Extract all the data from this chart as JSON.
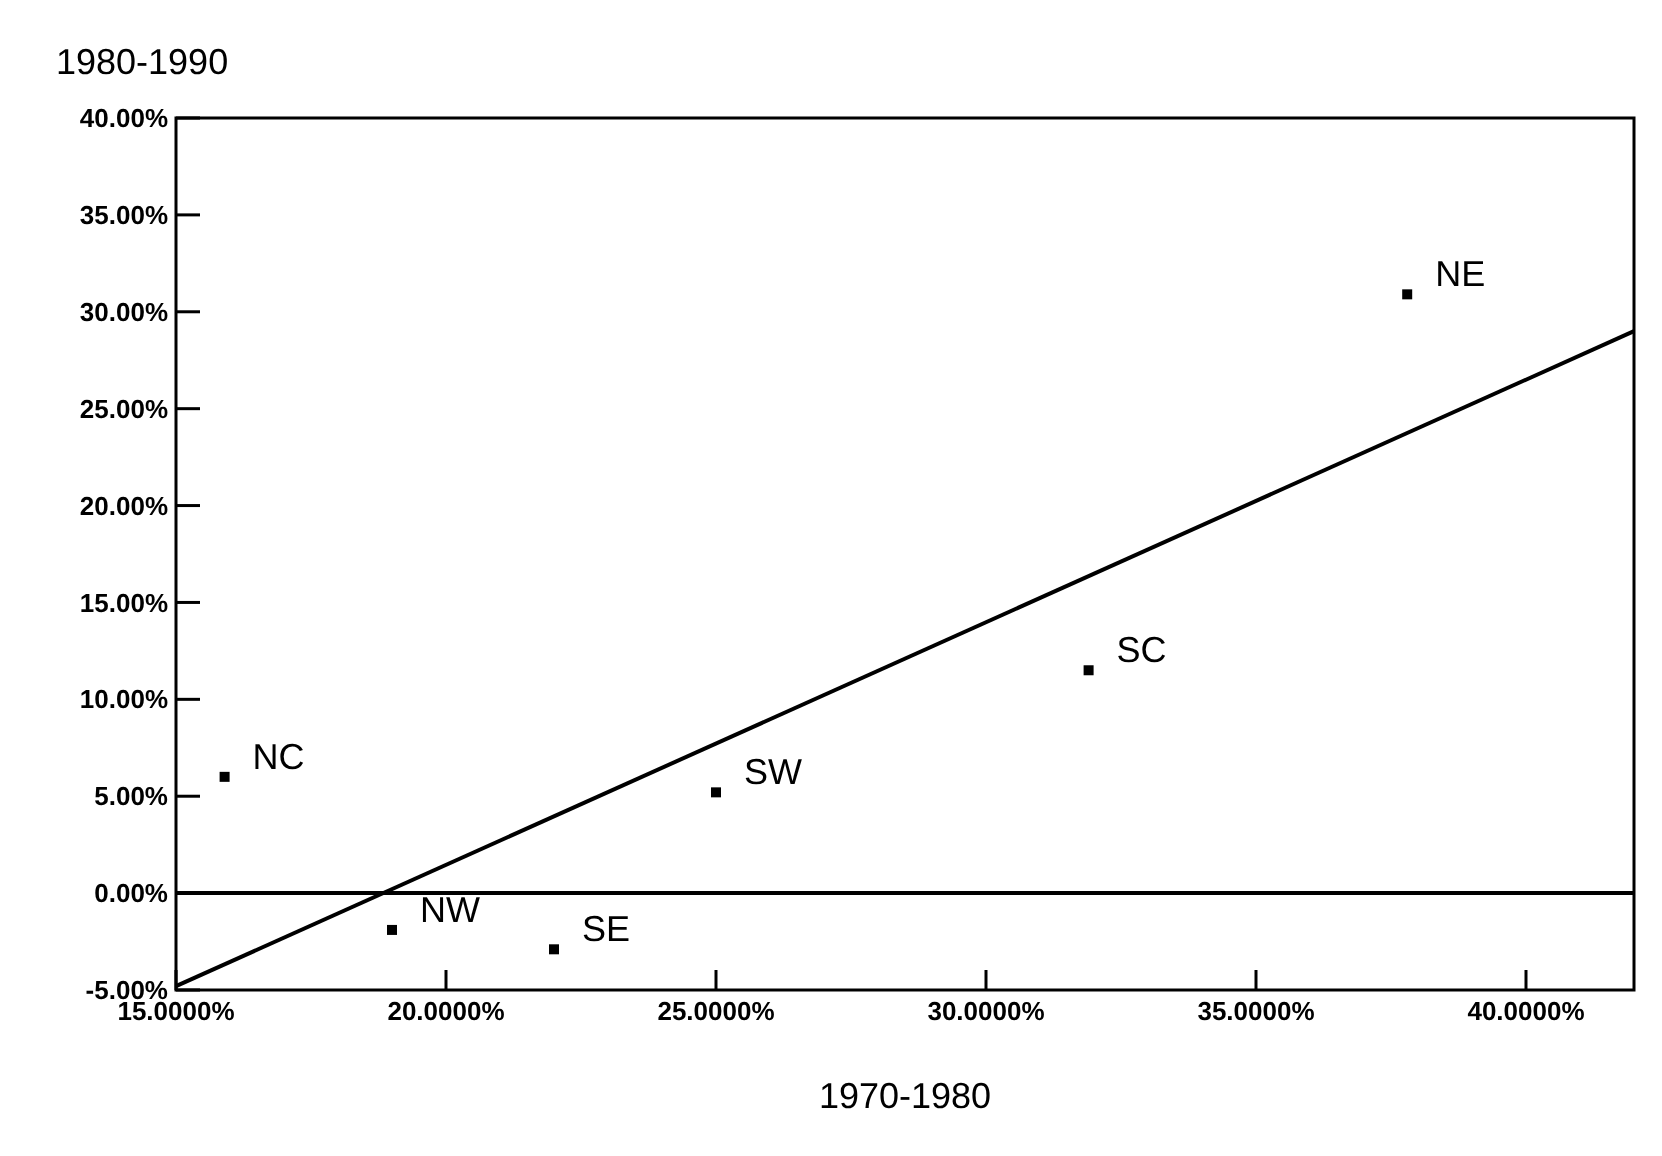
{
  "chart_data": {
    "type": "scatter",
    "xlabel": "1970-1980",
    "ylabel": "1980-1990",
    "grid": false,
    "xlim": [
      15,
      42
    ],
    "xticks": [
      {
        "value": 15,
        "label": "15.0000%"
      },
      {
        "value": 20,
        "label": "20.0000%"
      },
      {
        "value": 25,
        "label": "25.0000%"
      },
      {
        "value": 30,
        "label": "30.0000%"
      },
      {
        "value": 35,
        "label": "35.0000%"
      },
      {
        "value": 40,
        "label": "40.0000%"
      }
    ],
    "ylim": [
      -5,
      40
    ],
    "yticks": [
      {
        "value": -5,
        "label": "-5.00%"
      },
      {
        "value": 0,
        "label": "0.00%"
      },
      {
        "value": 5,
        "label": "5.00%"
      },
      {
        "value": 10,
        "label": "10.00%"
      },
      {
        "value": 15,
        "label": "15.00%"
      },
      {
        "value": 20,
        "label": "20.00%"
      },
      {
        "value": 25,
        "label": "25.00%"
      },
      {
        "value": 30,
        "label": "30.00%"
      },
      {
        "value": 35,
        "label": "35.00%"
      },
      {
        "value": 40,
        "label": "40.00%"
      }
    ],
    "series": [
      {
        "marker": "square",
        "color": "#000000",
        "x": [
          37.8,
          31.9,
          25.0,
          15.9,
          19.0,
          22.0
        ],
        "values": [
          30.9,
          11.5,
          5.2,
          6.0,
          -1.9,
          -2.9
        ]
      },
      {
        "type": "line",
        "marker": "none",
        "color": "#000000",
        "x": [
          15,
          42
        ],
        "values": [
          -4.8,
          29.0
        ]
      }
    ],
    "ref_lines": [
      {
        "axis": "y",
        "value": 0,
        "color": "#000000"
      }
    ],
    "annotations": [
      {
        "text": "NE",
        "x": 37.8,
        "y": 30.9
      },
      {
        "text": "SC",
        "x": 31.9,
        "y": 11.5
      },
      {
        "text": "SW",
        "x": 25.0,
        "y": 5.2
      },
      {
        "text": "NC",
        "x": 15.9,
        "y": 6.0
      },
      {
        "text": "NW",
        "x": 19.0,
        "y": -1.9
      },
      {
        "text": "SE",
        "x": 22.0,
        "y": -2.9
      }
    ]
  }
}
